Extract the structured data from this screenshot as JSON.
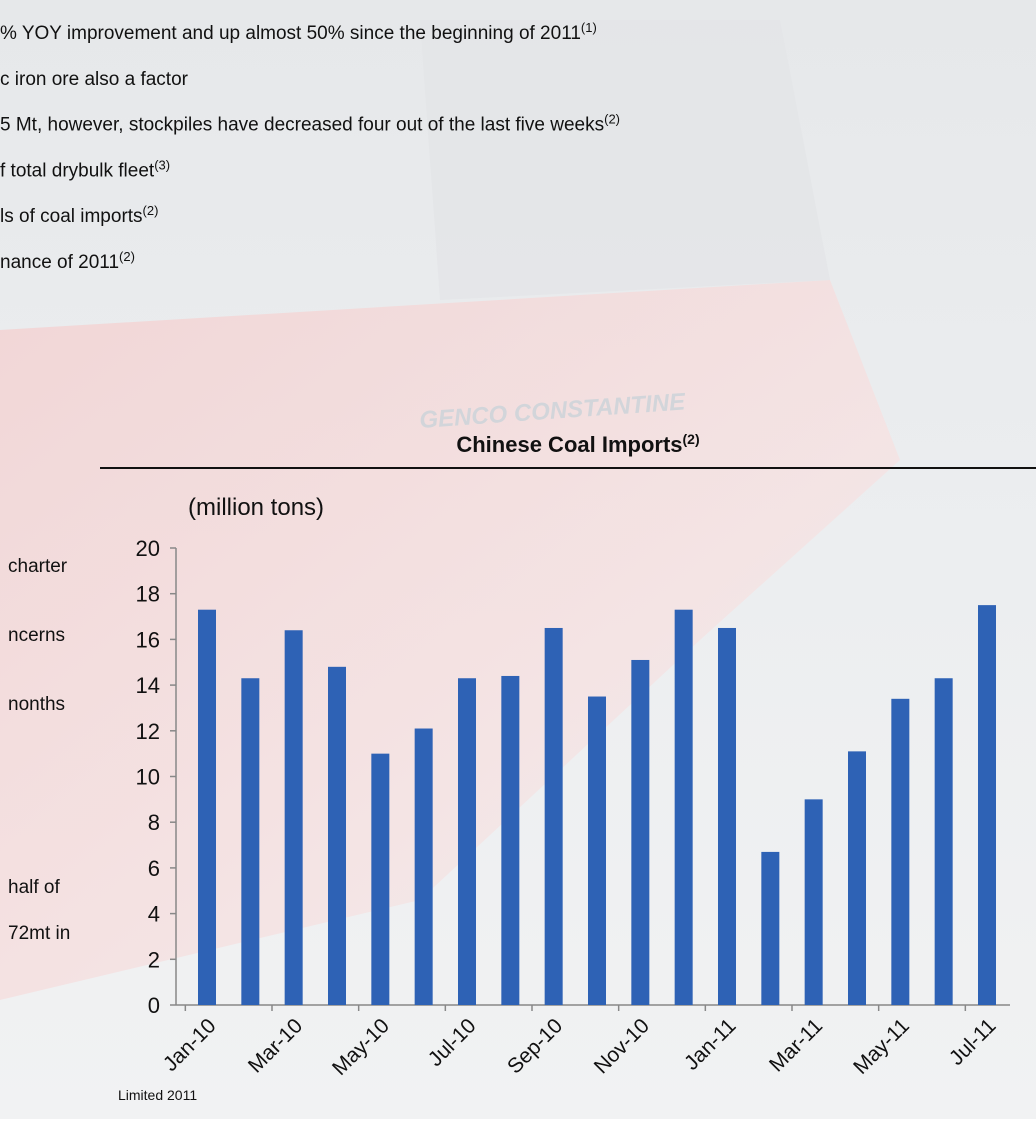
{
  "bullets": [
    {
      "text": "% YOY improvement and up almost 50% since the beginning of 2011",
      "sup": "(1)"
    },
    {
      "text": "c iron ore also a factor"
    },
    {
      "text": "5 Mt, however, stockpiles have decreased four out of the last five weeks",
      "sup": "(2)"
    },
    {
      "text": "f total drybulk fleet",
      "sup": "(3)"
    },
    {
      "text": "ls of coal imports",
      "sup": "(2)"
    },
    {
      "text": "nance of 2011",
      "sup": "(2)"
    }
  ],
  "side_text": [
    "charter",
    "ncerns",
    "nonths",
    "half of",
    "72mt in"
  ],
  "ship_name": "GENCO CONSTANTINE",
  "footer": "Limited 2011",
  "chart_data": {
    "type": "bar",
    "title": "Chinese Coal Imports",
    "title_sup": "(2)",
    "y_label": "(million tons)",
    "categories": [
      "Jan-10",
      null,
      "Mar-10",
      null,
      "May-10",
      null,
      "Jul-10",
      null,
      "Sep-10",
      null,
      "Nov-10",
      null,
      "Jan-11",
      null,
      "Mar-11",
      null,
      "May-11",
      null,
      "Jul-11"
    ],
    "values": [
      17.3,
      14.3,
      16.4,
      14.8,
      11.0,
      12.1,
      14.3,
      14.4,
      16.5,
      13.5,
      15.1,
      17.3,
      16.5,
      6.7,
      9.0,
      11.1,
      13.4,
      14.3,
      17.5
    ],
    "color": "#2e62b5",
    "ylim": [
      0,
      20
    ],
    "yticks": [
      0,
      2,
      4,
      6,
      8,
      10,
      12,
      14,
      16,
      18,
      20
    ]
  }
}
